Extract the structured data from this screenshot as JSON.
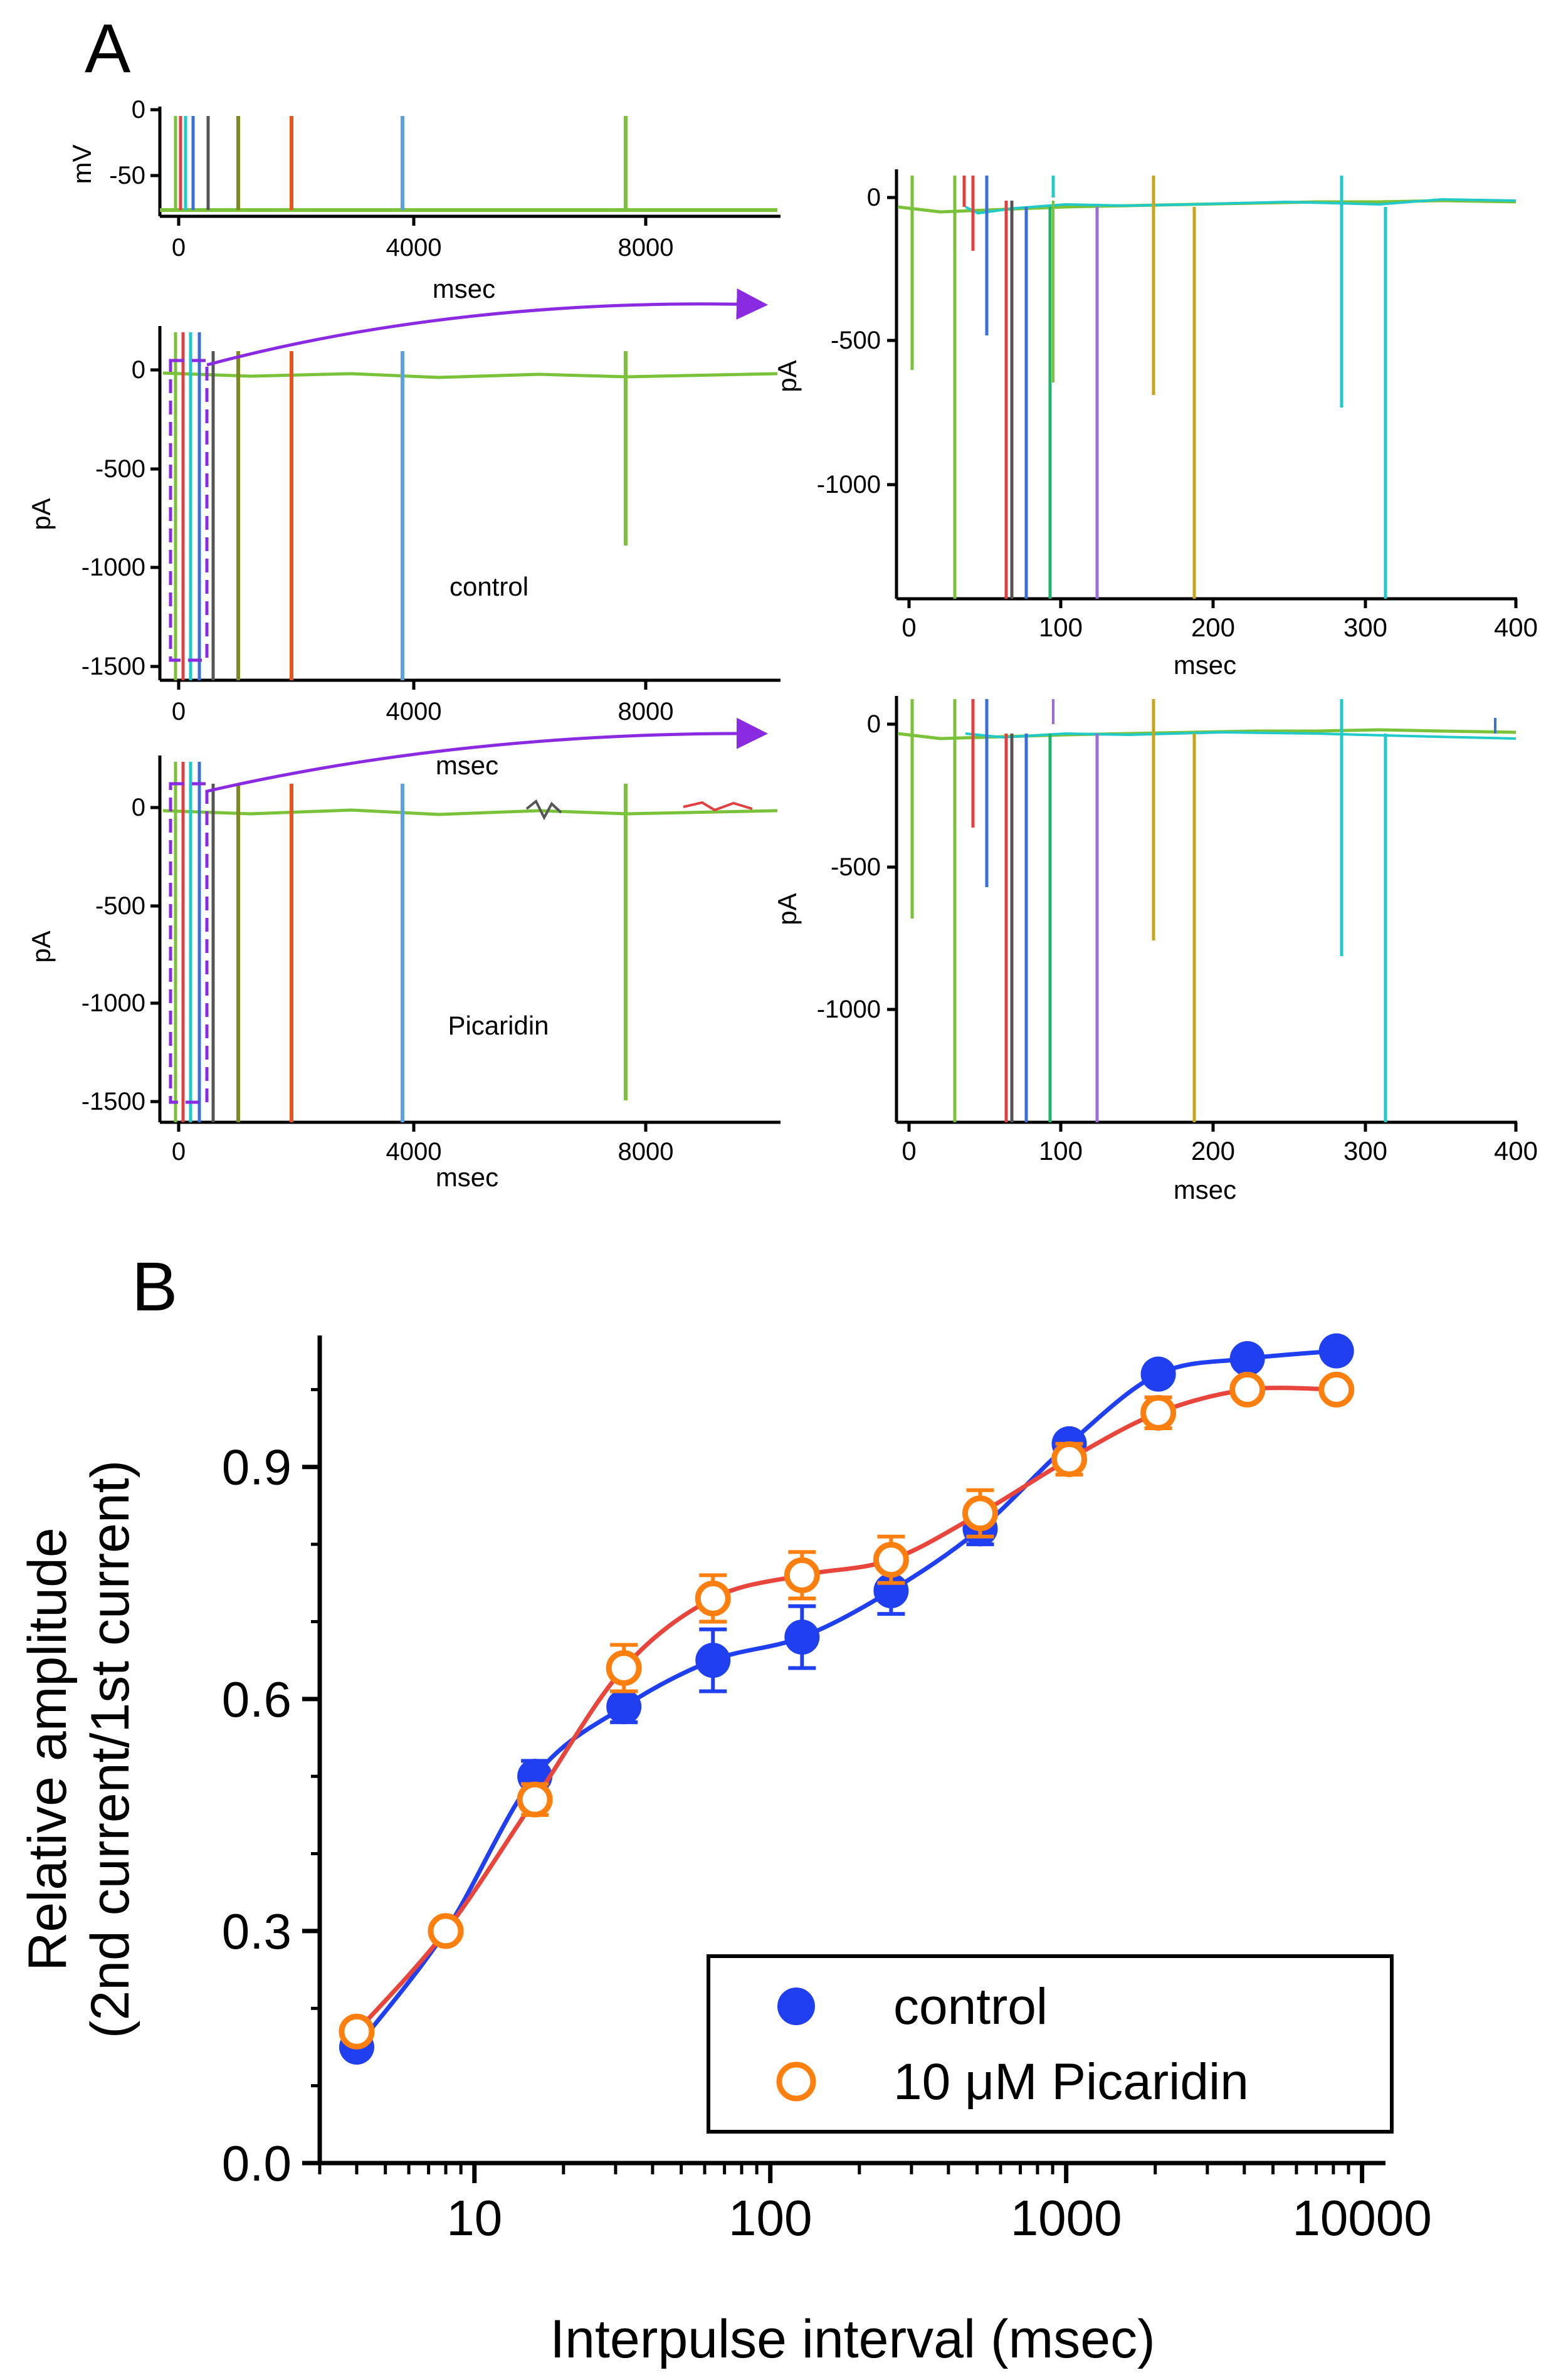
{
  "panel_a": {
    "letter": "A",
    "voltage_plot": {
      "ylabel": "mV",
      "xlabel": "msec",
      "yticks": [
        "0",
        "-50"
      ],
      "xticks": [
        "0",
        "4000",
        "8000"
      ]
    },
    "control_plot": {
      "ylabel": "pA",
      "xlabel": "msec",
      "annotation": "control",
      "yticks": [
        "0",
        "-500",
        "-1000",
        "-1500"
      ],
      "xticks": [
        "0",
        "4000",
        "8000"
      ]
    },
    "picaridin_plot": {
      "ylabel": "pA",
      "xlabel": "msec",
      "annotation": "Picaridin",
      "yticks": [
        "0",
        "-500",
        "-1000",
        "-1500"
      ],
      "xticks": [
        "0",
        "4000",
        "8000"
      ]
    },
    "zoom_control_plot": {
      "ylabel": "pA",
      "xlabel": "msec",
      "yticks": [
        "0",
        "-500",
        "-1000"
      ],
      "xticks": [
        "0",
        "100",
        "200",
        "300",
        "400"
      ]
    },
    "zoom_picaridin_plot": {
      "ylabel": "pA",
      "xlabel": "msec",
      "yticks": [
        "0",
        "-500",
        "-1000"
      ],
      "xticks": [
        "0",
        "100",
        "200",
        "300",
        "400"
      ]
    },
    "trace_colors": [
      "#3a6fd8",
      "#e8541e",
      "#c9a41a",
      "#7f8a1f",
      "#9b6bd6",
      "#22c9c9",
      "#5ba0e0",
      "#7ac23a",
      "#e04040",
      "#555555"
    ],
    "arrow_color": "#8a2be2"
  },
  "panel_b": {
    "letter": "B",
    "legend": [
      {
        "label": "control",
        "marker": "filled-circle",
        "color": "#1f3ff0"
      },
      {
        "label": "10 μM Picaridin",
        "marker": "open-circle",
        "color": "#ff7f0e"
      }
    ]
  },
  "chart_data": {
    "type": "scatter",
    "title": "",
    "xlabel": "Interpulse interval (msec)",
    "ylabel_line1": "Relative amplitude",
    "ylabel_line2": "(2nd current/1st current)",
    "xscale": "log",
    "xlim": [
      3,
      12000
    ],
    "ylim": [
      0,
      1.07
    ],
    "xtick_labels": [
      "10",
      "100",
      "1000",
      "10000"
    ],
    "xticks": [
      10,
      100,
      1000,
      10000
    ],
    "ytick_labels": [
      "0.0",
      "0.3",
      "0.6",
      "0.9"
    ],
    "yticks": [
      0,
      0.3,
      0.6,
      0.9
    ],
    "legend_position": "lower-right",
    "series": [
      {
        "name": "control",
        "color": "#1f3ff0",
        "line_color": "#1f3ff0",
        "marker": "filled",
        "x": [
          4,
          8,
          16,
          32,
          64,
          128,
          256,
          512,
          1024,
          2048,
          4096,
          8192
        ],
        "y": [
          0.15,
          0.3,
          0.5,
          0.59,
          0.65,
          0.68,
          0.74,
          0.82,
          0.93,
          1.02,
          1.04,
          1.05
        ],
        "err": [
          0.01,
          0.01,
          0.02,
          0.02,
          0.04,
          0.04,
          0.03,
          0.02,
          0.01,
          0.01,
          0.01,
          0.01
        ]
      },
      {
        "name": "10 μM Picaridin",
        "color": "#ff7f0e",
        "line_color": "#e8453c",
        "marker": "open",
        "x": [
          4,
          8,
          16,
          32,
          64,
          128,
          256,
          512,
          1024,
          2048,
          4096,
          8192
        ],
        "y": [
          0.17,
          0.3,
          0.47,
          0.64,
          0.73,
          0.76,
          0.78,
          0.84,
          0.91,
          0.97,
          1.0,
          1.0
        ],
        "err": [
          0.01,
          0.01,
          0.02,
          0.03,
          0.03,
          0.03,
          0.03,
          0.03,
          0.02,
          0.02,
          0.01,
          0.01
        ]
      }
    ]
  }
}
